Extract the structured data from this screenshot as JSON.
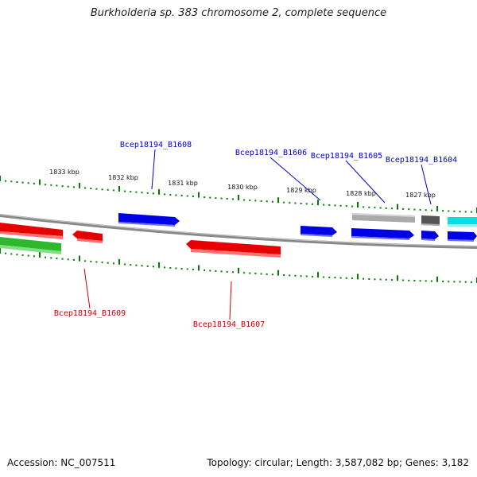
{
  "title": "Burkholderia sp. 383 chromosome 2, complete sequence",
  "footer": {
    "accession": "Accession: NC_007511",
    "summary": "Topology: circular; Length: 3,587,082 bp; Genes: 3,182"
  },
  "colors": {
    "forward_cds": "#0000e6",
    "reverse_cds": "#e60000",
    "rna_gene": "#2db82d",
    "other_feature": "#999999",
    "dark_feature": "#555555",
    "cyan_feature": "#00e0e6",
    "backbone": "#888888",
    "ticks": "#008000",
    "forward_label": "#0000cc",
    "reverse_label": "#cc0000"
  },
  "scale": {
    "unit": "kbp",
    "ticks": [
      {
        "label": "1833 kbp"
      },
      {
        "label": "1832 kbp"
      },
      {
        "label": "1831 kbp"
      },
      {
        "label": "1830 kbp"
      },
      {
        "label": "1829 kbp"
      },
      {
        "label": "1828 kbp"
      },
      {
        "label": "1827 kbp"
      }
    ]
  },
  "gene_labels": {
    "forward": [
      "Bcep18194_B1608",
      "Bcep18194_B1606",
      "Bcep18194_B1605",
      "Bcep18194_B1604"
    ],
    "reverse": [
      "Bcep18194_B1609",
      "Bcep18194_B1607"
    ]
  }
}
